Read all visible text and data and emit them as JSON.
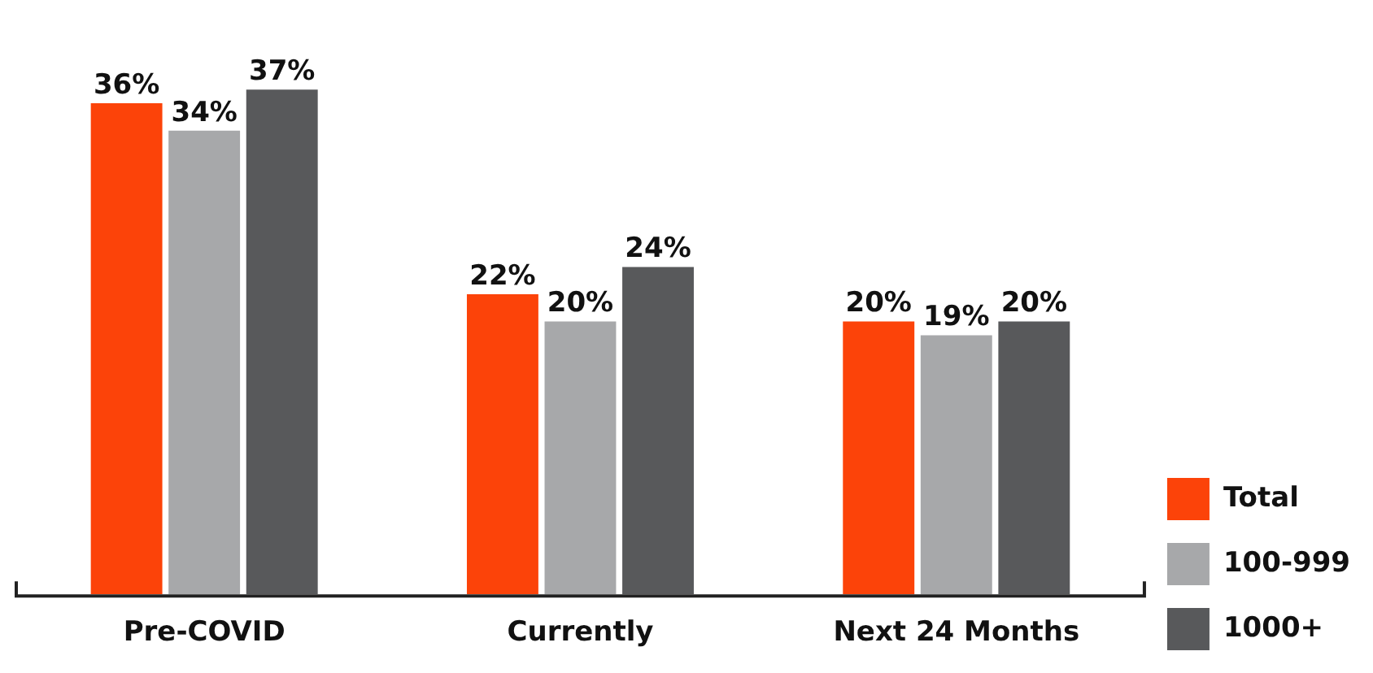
{
  "chart_data": {
    "type": "bar",
    "categories": [
      "Pre-COVID",
      "Currently",
      "Next 24 Months"
    ],
    "series": [
      {
        "name": "Total",
        "color": "#fc4309",
        "values": [
          36,
          22,
          20
        ],
        "value_labels": [
          "36%",
          "22%",
          "20%"
        ]
      },
      {
        "name": "100-999",
        "color": "#a7a8aa",
        "values": [
          34,
          20,
          19
        ],
        "value_labels": [
          "34%",
          "20%",
          "19%"
        ]
      },
      {
        "name": "1000+",
        "color": "#58595b",
        "values": [
          37,
          24,
          20
        ],
        "value_labels": [
          "37%",
          "24%",
          "20%"
        ]
      }
    ],
    "legend": "bottom right",
    "grid": false
  }
}
